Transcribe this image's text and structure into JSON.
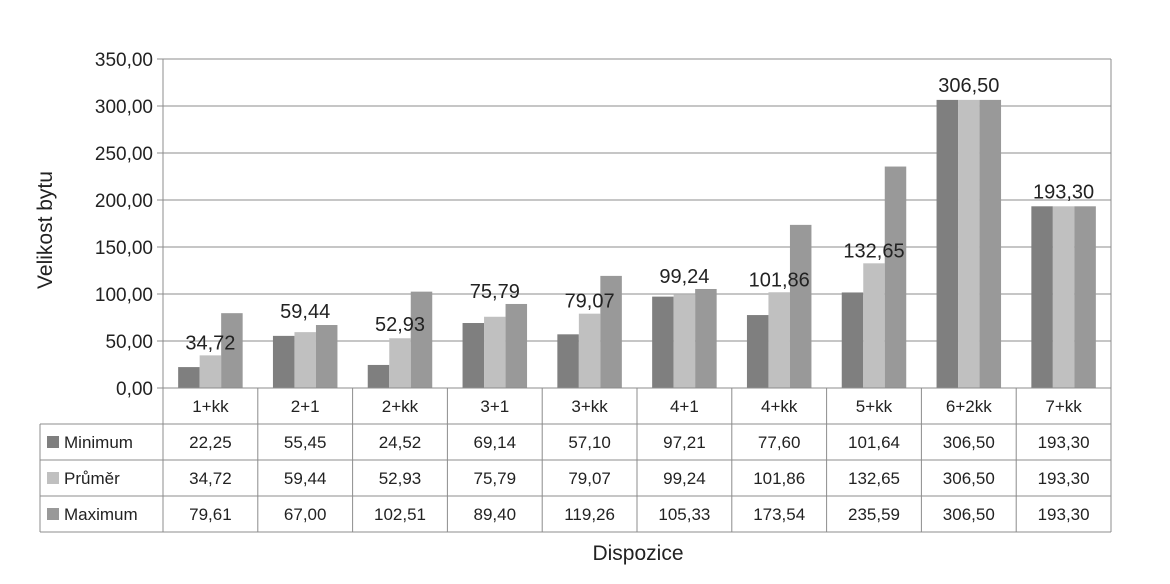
{
  "chart_data": {
    "type": "bar",
    "title": "",
    "xlabel": "Dispozice",
    "ylabel": "Velikost bytu",
    "ylim": [
      0,
      350
    ],
    "yticks": [
      "0,00",
      "50,00",
      "100,00",
      "150,00",
      "200,00",
      "250,00",
      "300,00",
      "350,00"
    ],
    "grid": true,
    "legend": "data-table",
    "categories": [
      "1+kk",
      "2+1",
      "2+kk",
      "3+1",
      "3+kk",
      "4+1",
      "4+kk",
      "5+kk",
      "6+2kk",
      "7+kk"
    ],
    "series": [
      {
        "name": "Minimum",
        "color": "#7f7f7f",
        "values": [
          22.25,
          55.45,
          24.52,
          69.14,
          57.1,
          97.21,
          77.6,
          101.64,
          306.5,
          193.3
        ],
        "labels": [
          "22,25",
          "55,45",
          "24,52",
          "69,14",
          "57,10",
          "97,21",
          "77,60",
          "101,64",
          "306,50",
          "193,30"
        ]
      },
      {
        "name": "Průměr",
        "color": "#c0c0c0",
        "values": [
          34.72,
          59.44,
          52.93,
          75.79,
          79.07,
          99.24,
          101.86,
          132.65,
          306.5,
          193.3
        ],
        "labels": [
          "34,72",
          "59,44",
          "52,93",
          "75,79",
          "79,07",
          "99,24",
          "101,86",
          "132,65",
          "306,50",
          "193,30"
        ]
      },
      {
        "name": "Maximum",
        "color": "#999999",
        "values": [
          79.61,
          67.0,
          102.51,
          89.4,
          119.26,
          105.33,
          173.54,
          235.59,
          306.5,
          193.3
        ],
        "labels": [
          "79,61",
          "67,00",
          "102,51",
          "89,40",
          "119,26",
          "105,33",
          "173,54",
          "235,59",
          "306,50",
          "193,30"
        ]
      }
    ],
    "data_labels_series": "Průměr"
  }
}
